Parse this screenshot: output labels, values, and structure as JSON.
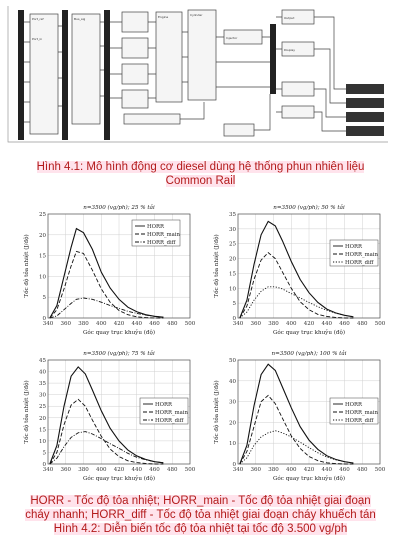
{
  "figure1": {
    "caption_line1": "Hình 4.1: Mô hình động cơ diesel dùng hệ thống phun nhiên liệu",
    "caption_line2": "Common Rail"
  },
  "figure2": {
    "legend_note_line1": "HORR - Tốc độ tỏa nhiệt; HORR_main - Tốc độ tỏa nhiệt giai đoạn",
    "legend_note_line2": "cháy nhanh; HORR_diff - Tốc độ tỏa nhiệt giai đoạn cháy khuếch tán",
    "caption": "Hình 4.2: Diễn biến tốc độ tỏa nhiệt tại tốc độ 3.500 vg/ph"
  },
  "chart_data": [
    {
      "type": "line",
      "title": "n=3500 (vg/ph); 25 % tải",
      "xlabel": "Góc quay trục khuỷu (độ)",
      "ylabel": "Tốc độ tỏa nhiệt (J/độ)",
      "xlim": [
        340,
        500
      ],
      "ylim": [
        0,
        25
      ],
      "xticks": [
        340,
        360,
        380,
        400,
        420,
        440,
        460,
        480,
        500
      ],
      "yticks": [
        0,
        5,
        10,
        15,
        20,
        25
      ],
      "legend": "top-right",
      "grid": true,
      "x": [
        342,
        350,
        358,
        366,
        372,
        380,
        390,
        400,
        410,
        420,
        430,
        440,
        450,
        460,
        470
      ],
      "series": [
        {
          "name": "HORR",
          "style": "solid",
          "values": [
            0,
            3,
            10,
            17,
            21.5,
            20.5,
            16.5,
            11,
            7.2,
            4.5,
            2.6,
            1.5,
            0.8,
            0.4,
            0.2
          ]
        },
        {
          "name": "HORR_main",
          "style": "dashed",
          "values": [
            0,
            2,
            7,
            12.5,
            16,
            15.5,
            11.5,
            7,
            3.8,
            1.8,
            0.8,
            0.3,
            0.1,
            0,
            0
          ]
        },
        {
          "name": "HORR_diff",
          "style": "dashdot",
          "values": [
            0,
            0.5,
            2,
            3.5,
            4.5,
            4.8,
            4.5,
            3.8,
            3,
            2.3,
            1.6,
            1.1,
            0.7,
            0.4,
            0.2
          ]
        }
      ]
    },
    {
      "type": "line",
      "title": "n=3500 (vg/ph); 50 % tải",
      "xlabel": "Góc quay trục khuỷu (độ)",
      "ylabel": "Tốc độ tỏa nhiệt (J/độ)",
      "xlim": [
        340,
        500
      ],
      "ylim": [
        0,
        35
      ],
      "xticks": [
        340,
        360,
        380,
        400,
        420,
        440,
        460,
        480,
        500
      ],
      "yticks": [
        0,
        5,
        10,
        15,
        20,
        25,
        30,
        35
      ],
      "legend": "right",
      "grid": true,
      "x": [
        342,
        350,
        358,
        366,
        374,
        382,
        390,
        400,
        410,
        420,
        430,
        440,
        450,
        460,
        470
      ],
      "series": [
        {
          "name": "HORR",
          "style": "solid",
          "values": [
            0,
            6,
            18,
            28,
            32.5,
            31,
            26,
            19,
            13,
            8.5,
            5.2,
            3,
            1.7,
            0.9,
            0.4
          ]
        },
        {
          "name": "HORR_main",
          "style": "dashed",
          "values": [
            0,
            4,
            13,
            19.5,
            22,
            20,
            15.5,
            10,
            5.5,
            2.8,
            1.2,
            0.5,
            0.2,
            0,
            0
          ]
        },
        {
          "name": "HORR_diff",
          "style": "dotted",
          "values": [
            0,
            2,
            6,
            9,
            10.5,
            10.5,
            9.8,
            8.2,
            6.8,
            5.2,
            3.8,
            2.6,
            1.6,
            0.9,
            0.4
          ]
        }
      ]
    },
    {
      "type": "line",
      "title": "n=3500 (vg/ph); 75 % tải",
      "xlabel": "Góc quay trục khuỷu (độ)",
      "ylabel": "Tốc độ tỏa nhiệt (J/độ)",
      "xlim": [
        340,
        500
      ],
      "ylim": [
        0,
        45
      ],
      "xticks": [
        340,
        360,
        380,
        400,
        420,
        440,
        460,
        480,
        500
      ],
      "yticks": [
        0,
        5,
        10,
        15,
        20,
        25,
        30,
        35,
        40,
        45
      ],
      "legend": "right",
      "grid": true,
      "x": [
        342,
        350,
        358,
        366,
        374,
        382,
        390,
        400,
        410,
        420,
        430,
        440,
        450,
        460,
        470
      ],
      "series": [
        {
          "name": "HORR",
          "style": "solid",
          "values": [
            0,
            8,
            25,
            38,
            42,
            39,
            32,
            23,
            15.5,
            10,
            6,
            3.5,
            2,
            1,
            0.5
          ]
        },
        {
          "name": "HORR_main",
          "style": "dashed",
          "values": [
            0,
            5,
            17,
            25.5,
            28,
            25,
            19,
            12,
            6.5,
            3.2,
            1.4,
            0.6,
            0.2,
            0,
            0
          ]
        },
        {
          "name": "HORR_diff",
          "style": "dashdot",
          "values": [
            0,
            2.5,
            7.5,
            11.5,
            13.5,
            14,
            13,
            11,
            8.8,
            6.8,
            4.6,
            2.9,
            1.8,
            1,
            0.5
          ]
        }
      ]
    },
    {
      "type": "line",
      "title": "n=3500 (vg/ph); 100 % tải",
      "xlabel": "Góc quay trục khuỷu (độ)",
      "ylabel": "Tốc độ tỏa nhiệt (J/độ)",
      "xlim": [
        340,
        500
      ],
      "ylim": [
        0,
        50
      ],
      "xticks": [
        340,
        360,
        380,
        400,
        420,
        440,
        460,
        480,
        500
      ],
      "yticks": [
        0,
        10,
        20,
        30,
        40,
        50
      ],
      "legend": "right",
      "grid": true,
      "x": [
        342,
        350,
        358,
        366,
        374,
        382,
        390,
        400,
        410,
        420,
        430,
        440,
        450,
        460,
        470
      ],
      "series": [
        {
          "name": "HORR",
          "style": "solid",
          "values": [
            0,
            9,
            28,
            43,
            48,
            45,
            37,
            27,
            18,
            11.5,
            7,
            4,
            2.2,
            1.1,
            0.5
          ]
        },
        {
          "name": "HORR_main",
          "style": "dashed",
          "values": [
            0,
            6,
            18,
            30,
            33,
            29,
            22,
            13.5,
            7.5,
            3.6,
            1.6,
            0.6,
            0.2,
            0,
            0
          ]
        },
        {
          "name": "HORR_diff",
          "style": "dotted",
          "values": [
            0,
            3,
            9,
            13,
            15,
            16,
            15,
            13,
            10.5,
            7.9,
            5.4,
            3.4,
            2,
            1.1,
            0.5
          ]
        }
      ]
    }
  ]
}
